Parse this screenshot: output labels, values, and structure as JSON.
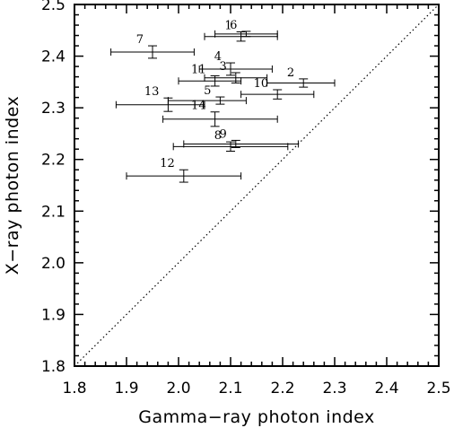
{
  "chart_data": {
    "type": "scatter",
    "title": "",
    "xlabel": "Gamma−ray photon  index",
    "ylabel": "X−ray photon index",
    "xlim": [
      1.8,
      2.5
    ],
    "ylim": [
      1.8,
      2.5
    ],
    "x_ticks": [
      "1.8",
      "1.9",
      "2.0",
      "2.1",
      "2.2",
      "2.3",
      "2.4",
      "2.5"
    ],
    "y_ticks": [
      "1.8",
      "1.9",
      "2.0",
      "2.1",
      "2.2",
      "2.3",
      "2.4",
      "2.5"
    ],
    "grid": false,
    "reference_line": {
      "style": "dotted",
      "from": [
        1.8,
        1.8
      ],
      "to": [
        2.5,
        2.5
      ]
    },
    "points": [
      {
        "label": "1",
        "x": 2.12,
        "x_lo": 2.05,
        "x_hi": 2.19,
        "y": 2.438,
        "y_err": 0.009
      },
      {
        "label": "6",
        "x": 2.13,
        "x_lo": 2.07,
        "x_hi": 2.19,
        "y": 2.443,
        "y_err": 0.005
      },
      {
        "label": "7",
        "x": 1.95,
        "x_lo": 1.87,
        "x_hi": 2.03,
        "y": 2.408,
        "y_err": 0.012
      },
      {
        "label": "4",
        "x": 2.1,
        "x_lo": 2.04,
        "x_hi": 2.18,
        "y": 2.375,
        "y_err": 0.012
      },
      {
        "label": "11",
        "x": 2.07,
        "x_lo": 2.0,
        "x_hi": 2.12,
        "y": 2.352,
        "y_err": 0.01
      },
      {
        "label": "3",
        "x": 2.11,
        "x_lo": 2.05,
        "x_hi": 2.17,
        "y": 2.358,
        "y_err": 0.01
      },
      {
        "label": "2",
        "x": 2.24,
        "x_lo": 2.17,
        "x_hi": 2.3,
        "y": 2.348,
        "y_err": 0.008
      },
      {
        "label": "5",
        "x": 2.08,
        "x_lo": 1.98,
        "x_hi": 2.13,
        "y": 2.314,
        "y_err": 0.007
      },
      {
        "label": "10",
        "x": 2.19,
        "x_lo": 2.12,
        "x_hi": 2.26,
        "y": 2.326,
        "y_err": 0.009
      },
      {
        "label": "13",
        "x": 1.98,
        "x_lo": 1.88,
        "x_hi": 2.05,
        "y": 2.306,
        "y_err": 0.013
      },
      {
        "label": "14",
        "x": 2.07,
        "x_lo": 1.97,
        "x_hi": 2.19,
        "y": 2.278,
        "y_err": 0.014
      },
      {
        "label": "8",
        "x": 2.1,
        "x_lo": 1.99,
        "x_hi": 2.21,
        "y": 2.225,
        "y_err": 0.009
      },
      {
        "label": "9",
        "x": 2.11,
        "x_lo": 2.01,
        "x_hi": 2.23,
        "y": 2.23,
        "y_err": 0.007
      },
      {
        "label": "12",
        "x": 2.01,
        "x_lo": 1.9,
        "x_hi": 2.12,
        "y": 2.168,
        "y_err": 0.012
      }
    ]
  }
}
